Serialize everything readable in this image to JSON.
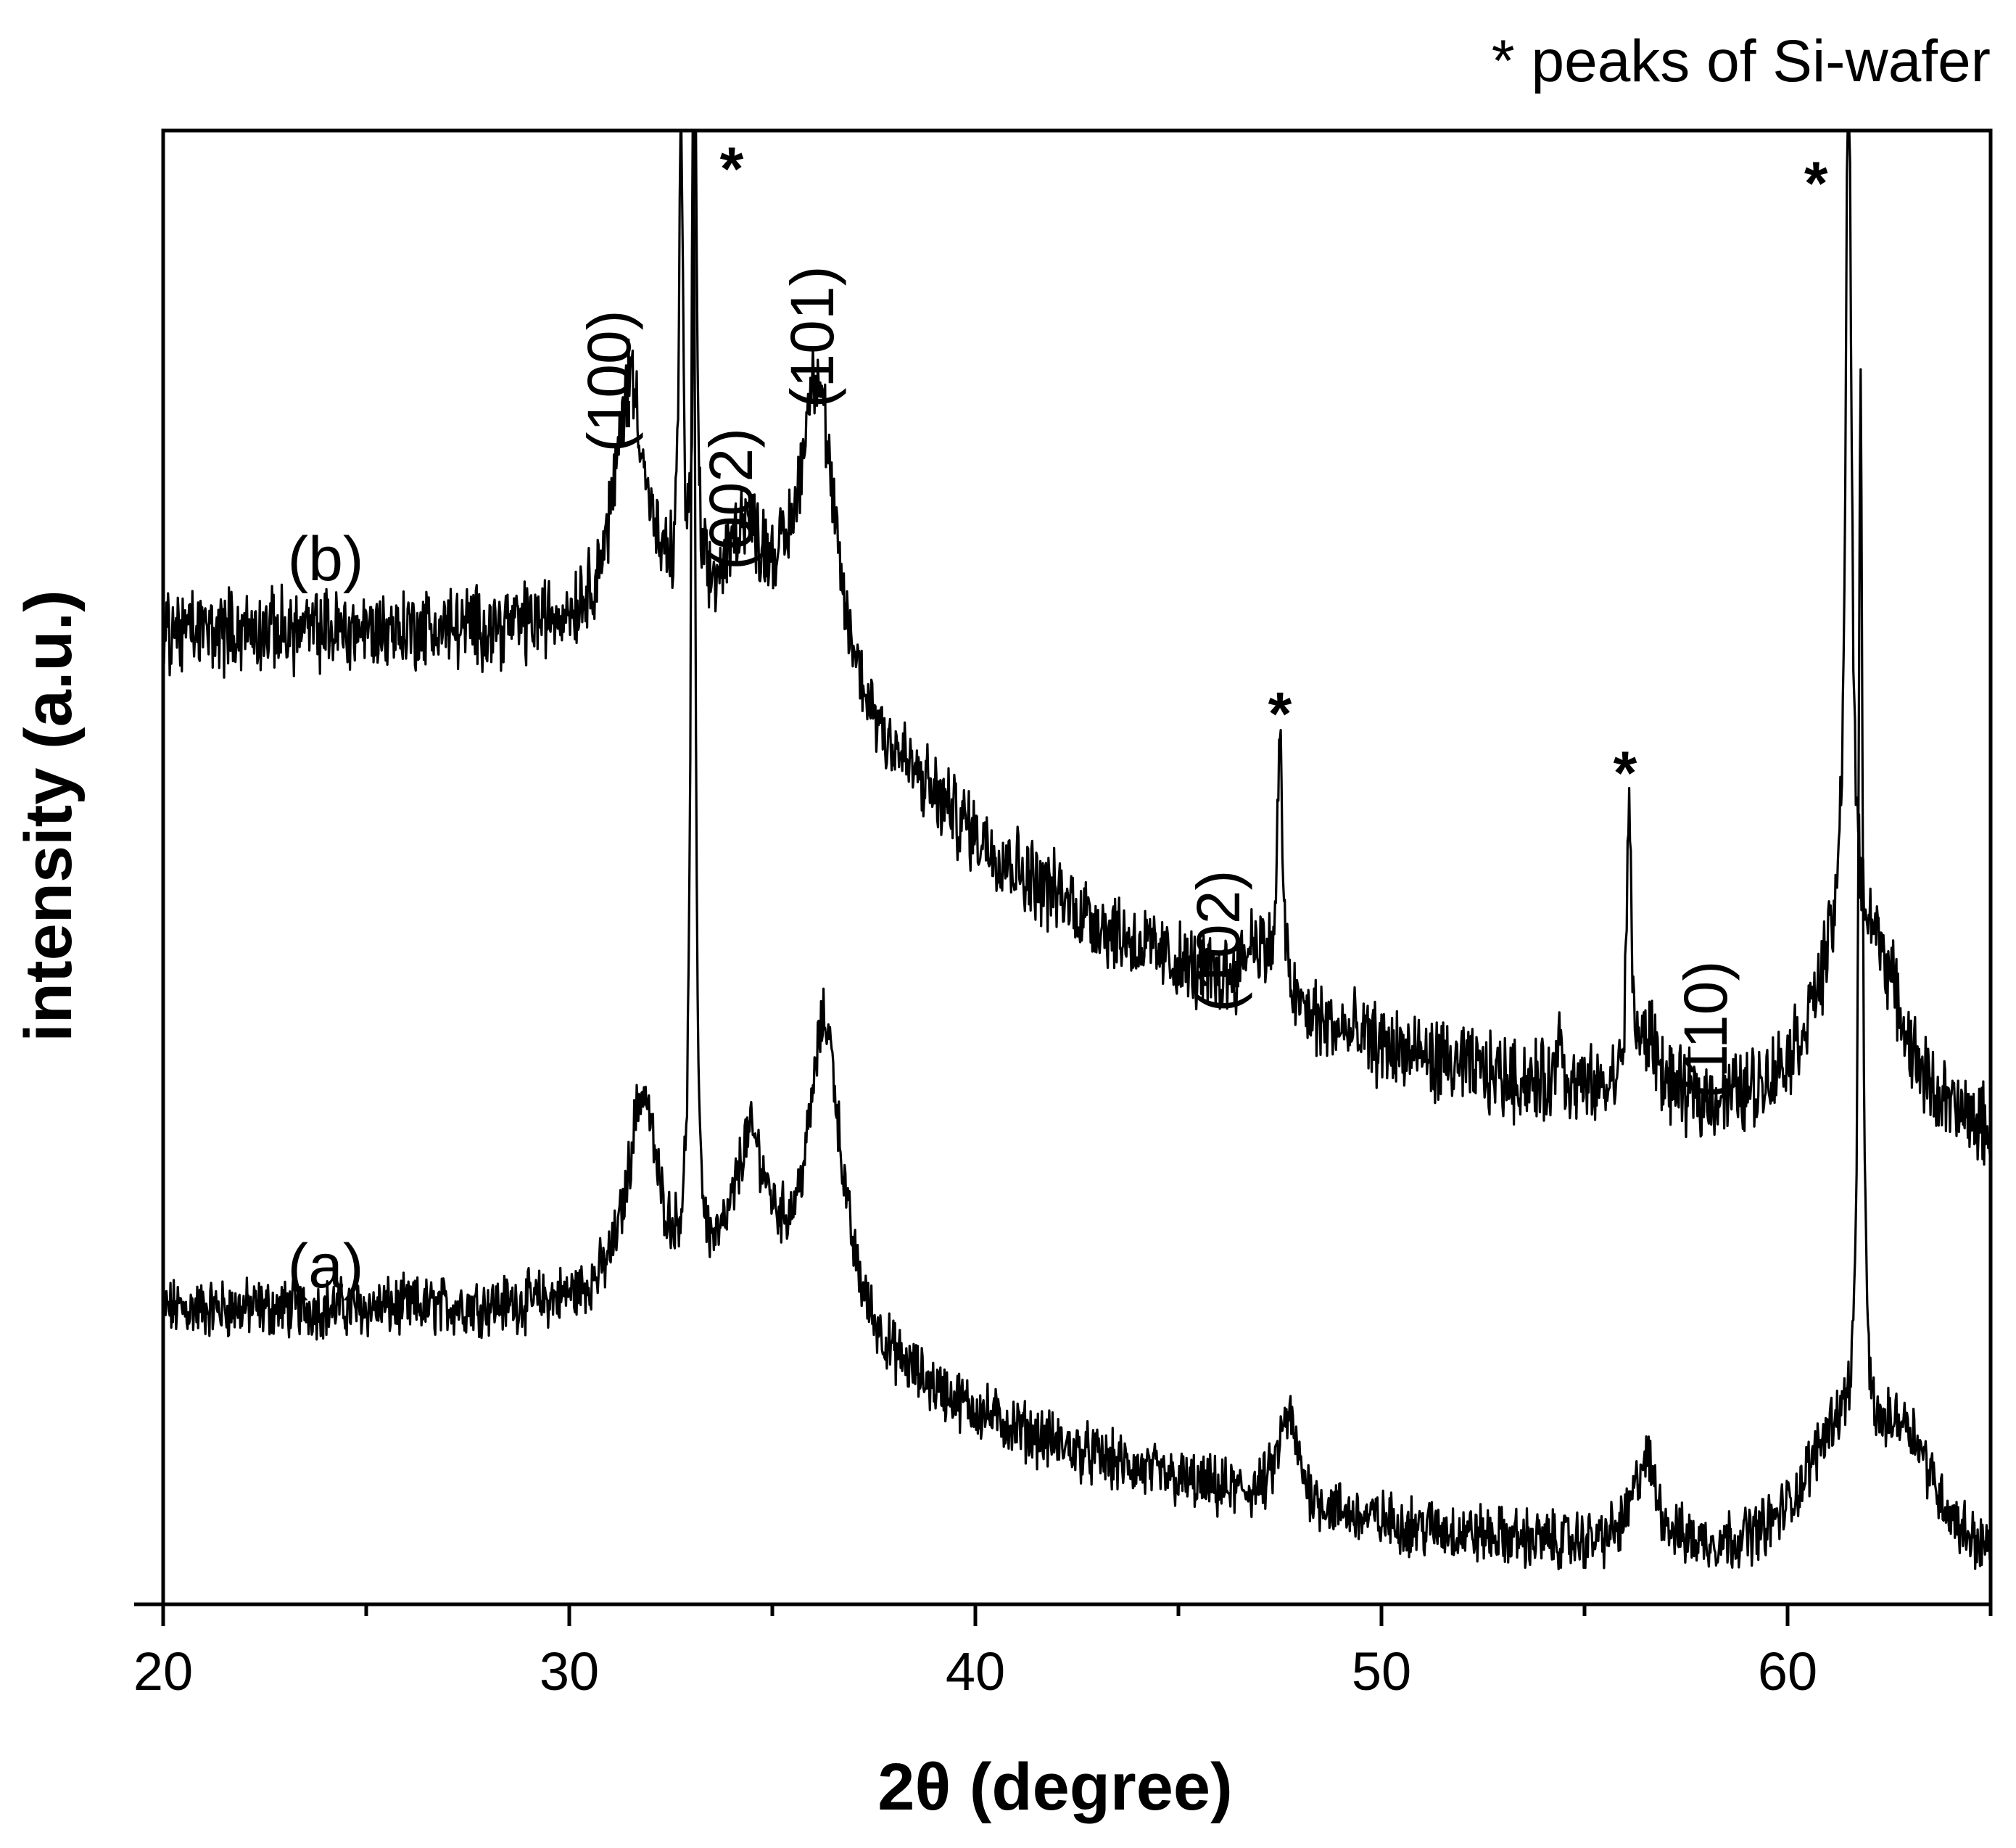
{
  "chart_data": {
    "type": "line",
    "title": "",
    "xlabel": "2θ (degree)",
    "ylabel": "intensity (a.u.)",
    "xlim": [
      20,
      65
    ],
    "ylim": [
      0,
      100
    ],
    "xticks": [
      20,
      30,
      40,
      50,
      60
    ],
    "yticks": [],
    "grid": false,
    "note": "* peaks of Si-wafer",
    "series": [
      {
        "name": "(a)",
        "baseline": 20,
        "baseline_tail": 4,
        "noise": 1.6,
        "peaks": [
          {
            "x": 31.8,
            "height": 14,
            "width": 0.45
          },
          {
            "x": 33.05,
            "height": 84,
            "width": 0.06
          },
          {
            "x": 34.45,
            "height": 10,
            "width": 0.5
          },
          {
            "x": 36.3,
            "height": 21,
            "width": 0.5
          },
          {
            "x": 47.7,
            "height": 6,
            "width": 0.3
          },
          {
            "x": 56.5,
            "height": 6,
            "width": 0.35
          },
          {
            "x": 61.8,
            "height": 72,
            "width": 0.06
          },
          {
            "x": 61.2,
            "height": 8,
            "width": 1.0
          },
          {
            "x": 62.9,
            "height": 8,
            "width": 0.9
          }
        ]
      },
      {
        "name": "(b)",
        "baseline": 66,
        "baseline_tail": 33,
        "noise": 2.2,
        "peaks": [
          {
            "x": 31.5,
            "height": 17,
            "width": 0.45
          },
          {
            "x": 32.75,
            "height": 36,
            "width": 0.05
          },
          {
            "x": 33.1,
            "height": 36,
            "width": 0.05
          },
          {
            "x": 34.3,
            "height": 6,
            "width": 0.45
          },
          {
            "x": 36.1,
            "height": 21,
            "width": 0.5
          },
          {
            "x": 47.5,
            "height": 17,
            "width": 0.08
          },
          {
            "x": 46.9,
            "height": 4,
            "width": 0.4
          },
          {
            "x": 54.4,
            "height": 5,
            "width": 0.06
          },
          {
            "x": 56.1,
            "height": 19,
            "width": 0.07
          },
          {
            "x": 56.6,
            "height": 4,
            "width": 0.3
          },
          {
            "x": 61.5,
            "height": 64,
            "width": 0.08
          },
          {
            "x": 61.4,
            "height": 11,
            "width": 1.1
          },
          {
            "x": 62.3,
            "height": 6,
            "width": 0.7
          }
        ]
      }
    ],
    "series_labels": [
      "(a)",
      "(b)"
    ],
    "peak_labels": [
      {
        "text": "(100)",
        "x": 31.5,
        "y": 83
      },
      {
        "text": "(002)",
        "x": 34.5,
        "y": 75
      },
      {
        "text": "(101)",
        "x": 36.5,
        "y": 86
      },
      {
        "text": "(102)",
        "x": 46.5,
        "y": 45
      },
      {
        "text": "(110)",
        "x": 58.5,
        "y": 39
      }
    ],
    "si_markers": [
      {
        "text": "*",
        "x": 34.0,
        "y": 96
      },
      {
        "text": "*",
        "x": 47.5,
        "y": 59
      },
      {
        "text": "*",
        "x": 56.0,
        "y": 55
      },
      {
        "text": "*",
        "x": 60.7,
        "y": 95
      }
    ]
  }
}
